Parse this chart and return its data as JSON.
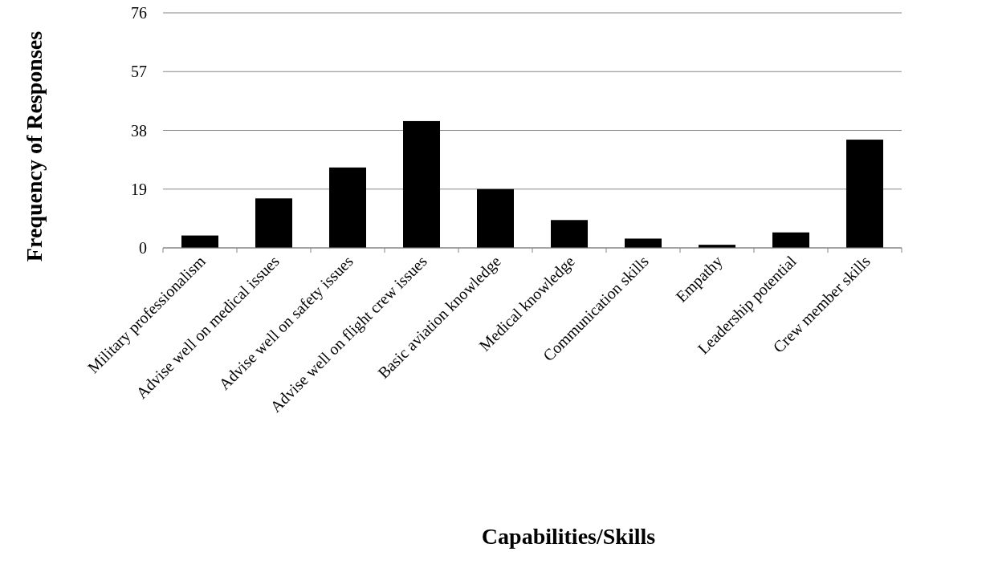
{
  "chart_data": {
    "type": "bar",
    "xlabel": "Capabilities/Skills",
    "ylabel": "Frequency of Responses",
    "categories": [
      "Military professionalism",
      "Advise well on medical issues",
      "Advise well on safety issues",
      "Advise well on flight crew issues",
      "Basic aviation knowledge",
      "Medical knowledge",
      "Communication skills",
      "Empathy",
      "Leadership potential",
      "Crew member skills"
    ],
    "values": [
      4,
      16,
      26,
      41,
      19,
      9,
      3,
      1,
      5,
      35
    ],
    "color": "#000000",
    "ylim": [
      0,
      76
    ],
    "yticks": [
      0,
      19,
      38,
      57,
      76
    ],
    "grid": "y"
  }
}
